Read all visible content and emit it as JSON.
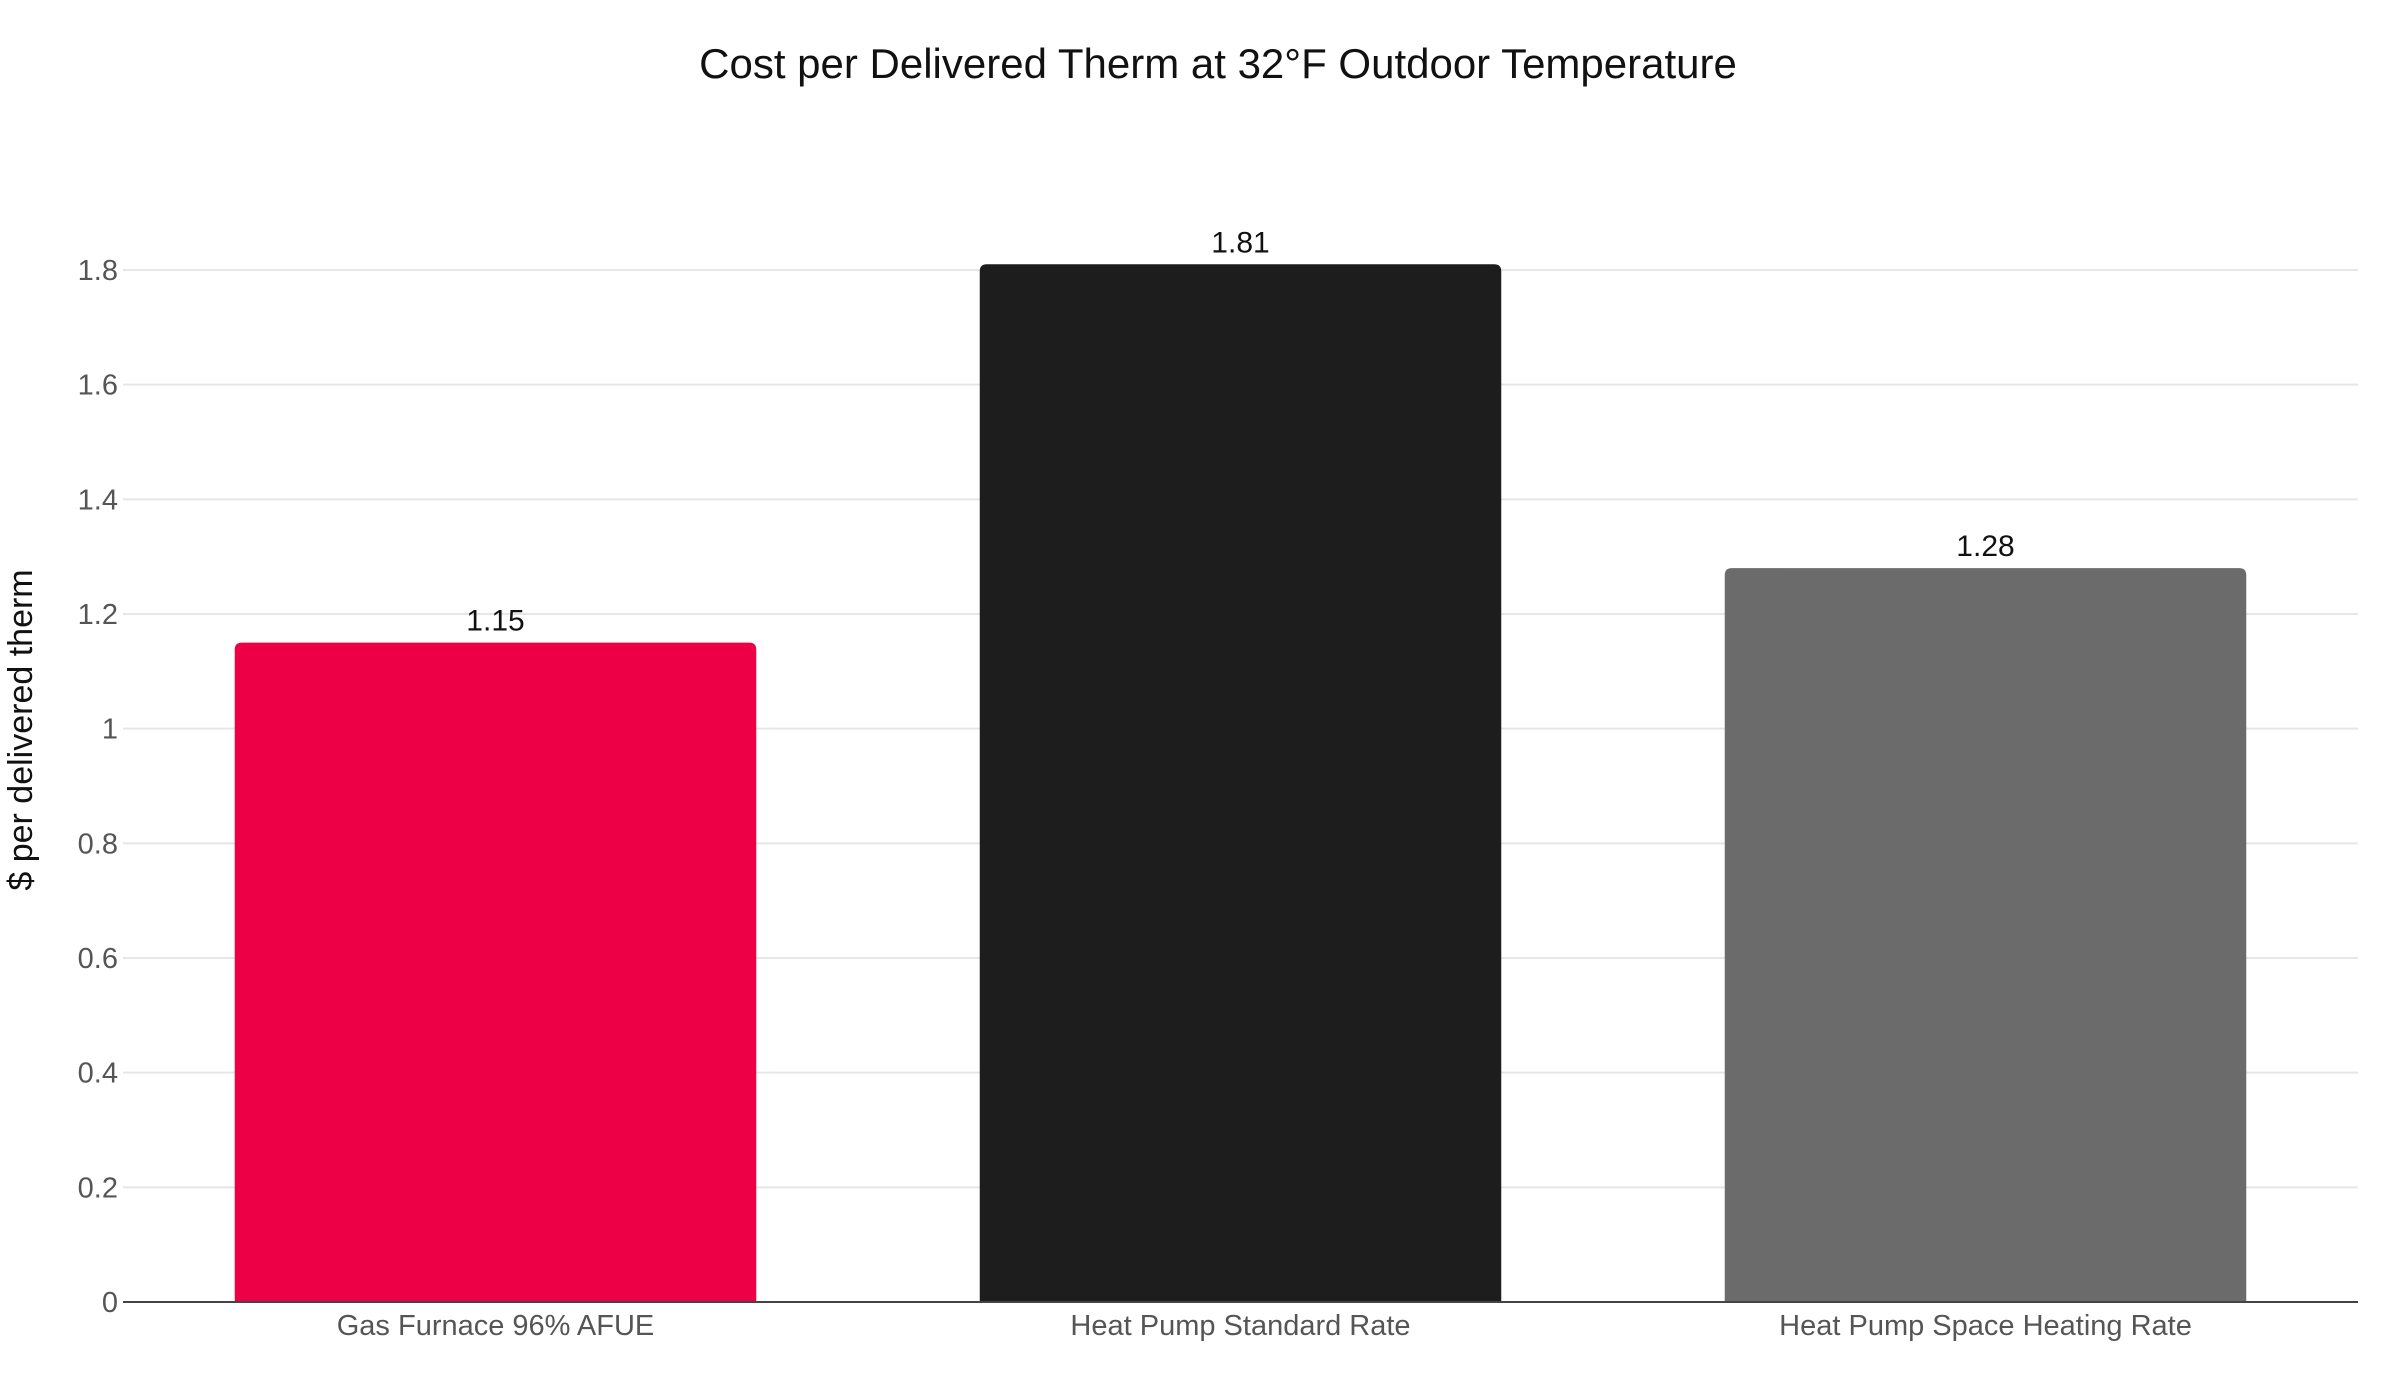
{
  "chart_data": {
    "type": "bar",
    "title": "Cost per Delivered Therm at 32°F Outdoor Temperature",
    "xlabel": "",
    "ylabel": "$ per delivered therm",
    "categories": [
      "Gas Furnace 96% AFUE",
      "Heat Pump Standard Rate",
      "Heat Pump Space Heating Rate"
    ],
    "values": [
      1.15,
      1.81,
      1.28
    ],
    "value_labels": [
      "1.15",
      "1.81",
      "1.28"
    ],
    "colors": [
      "#ED0045",
      "#1D1D1D",
      "#6B6B6B"
    ],
    "ylim": [
      0,
      1.8
    ],
    "yticks": [
      0,
      0.2,
      0.4,
      0.6,
      0.8,
      1,
      1.2,
      1.4,
      1.6,
      1.8
    ],
    "ytick_labels": [
      "0",
      "0.2",
      "0.4",
      "0.6",
      "0.8",
      "1",
      "1.2",
      "1.4",
      "1.6",
      "1.8"
    ],
    "grid": true,
    "legend": "none"
  }
}
